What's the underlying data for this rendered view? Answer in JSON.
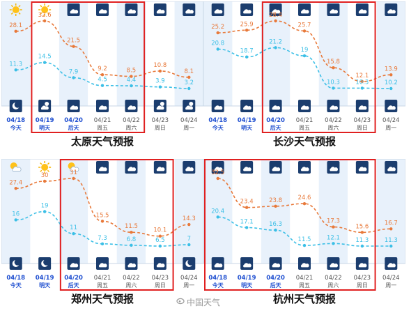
{
  "colors": {
    "high": "#e8793a",
    "low": "#3bbfe6",
    "highlight_box": "#e02020",
    "band_light": "#e8f1fb",
    "band_white": "#ffffff",
    "icon_bg": "#1b3d6e",
    "date_blue": "#1f4fd0",
    "date_grey": "#555555"
  },
  "watermark": "中国天气",
  "chart_data": [
    {
      "type": "line",
      "title": "太原天气预报",
      "x": [
        "04/18",
        "04/19",
        "04/20",
        "04/21",
        "04/22",
        "04/23",
        "04/24"
      ],
      "weekdays": [
        "今天",
        "明天",
        "后天",
        "周五",
        "周六",
        "周日",
        "周一"
      ],
      "day_icons": [
        "sunny",
        "sunny",
        "cloudy",
        "cloudy",
        "cloudy",
        "cloudy",
        "cloudy"
      ],
      "night_icons": [
        "moon",
        "cloudy-night",
        "cloudy",
        "cloudy",
        "cloudy",
        "cloudy-night",
        "cloudy-night"
      ],
      "series": [
        {
          "key": "high",
          "values": [
            28.1,
            32.6,
            21.5,
            9.2,
            8.5,
            10.8,
            8.1
          ]
        },
        {
          "key": "low",
          "values": [
            11.3,
            14.5,
            7.9,
            4.5,
            4.4,
            3.9,
            3.2
          ]
        }
      ],
      "highlight": [
        1,
        4
      ]
    },
    {
      "type": "line",
      "title": "长沙天气预报",
      "x": [
        "04/18",
        "04/19",
        "04/20",
        "04/21",
        "04/22",
        "04/23",
        "04/24"
      ],
      "weekdays": [
        "今天",
        "明天",
        "后天",
        "周五",
        "周六",
        "周日",
        "周一"
      ],
      "day_icons": [
        "cloudy",
        "cloudy",
        "cloudy",
        "cloudy",
        "cloudy",
        "cloudy",
        "cloudy"
      ],
      "night_icons": [
        "cloudy",
        "cloudy",
        "cloudy",
        "cloudy",
        "cloudy",
        "cloudy",
        "cloudy"
      ],
      "series": [
        {
          "key": "high",
          "values": [
            25.2,
            25.9,
            28.4,
            25.7,
            15.8,
            12.1,
            13.9
          ]
        },
        {
          "key": "low",
          "values": [
            20.8,
            18.7,
            21.2,
            19,
            10.3,
            10.3,
            10.2
          ]
        }
      ],
      "highlight": [
        2,
        5
      ]
    },
    {
      "type": "line",
      "title": "郑州天气预报",
      "x": [
        "04/18",
        "04/19",
        "04/20",
        "04/21",
        "04/22",
        "04/23",
        "04/24"
      ],
      "weekdays": [
        "今天",
        "明天",
        "后天",
        "周五",
        "周六",
        "周日",
        "周一"
      ],
      "day_icons": [
        "partly-cloudy",
        "sunny",
        "partly-cloudy",
        "cloudy",
        "cloudy",
        "cloudy",
        "cloudy"
      ],
      "night_icons": [
        "moon",
        "moon",
        "cloudy",
        "cloudy",
        "cloudy",
        "cloudy",
        "moon"
      ],
      "series": [
        {
          "key": "high",
          "values": [
            27.4,
            30,
            31,
            15.5,
            11.5,
            10.1,
            14.3
          ]
        },
        {
          "key": "low",
          "values": [
            16,
            19,
            11,
            7.3,
            6.8,
            6.5,
            7
          ]
        }
      ],
      "highlight": [
        2,
        5
      ]
    },
    {
      "type": "line",
      "title": "杭州天气预报",
      "x": [
        "04/18",
        "04/19",
        "04/20",
        "04/21",
        "04/22",
        "04/23",
        "04/24"
      ],
      "weekdays": [
        "今天",
        "明天",
        "后天",
        "周五",
        "周六",
        "周日",
        "周一"
      ],
      "day_icons": [
        "cloudy",
        "cloudy",
        "cloudy",
        "cloudy",
        "cloudy",
        "cloudy",
        "cloudy"
      ],
      "night_icons": [
        "cloudy",
        "cloudy",
        "cloudy",
        "cloudy",
        "cloudy",
        "cloudy",
        "cloudy"
      ],
      "series": [
        {
          "key": "high",
          "values": [
            32.5,
            23.4,
            23.8,
            24.6,
            17.3,
            15.6,
            16.7
          ]
        },
        {
          "key": "low",
          "values": [
            20.4,
            17.1,
            16.3,
            11.5,
            12.1,
            11.3,
            11.3
          ]
        }
      ],
      "highlight": [
        0,
        5
      ]
    }
  ]
}
